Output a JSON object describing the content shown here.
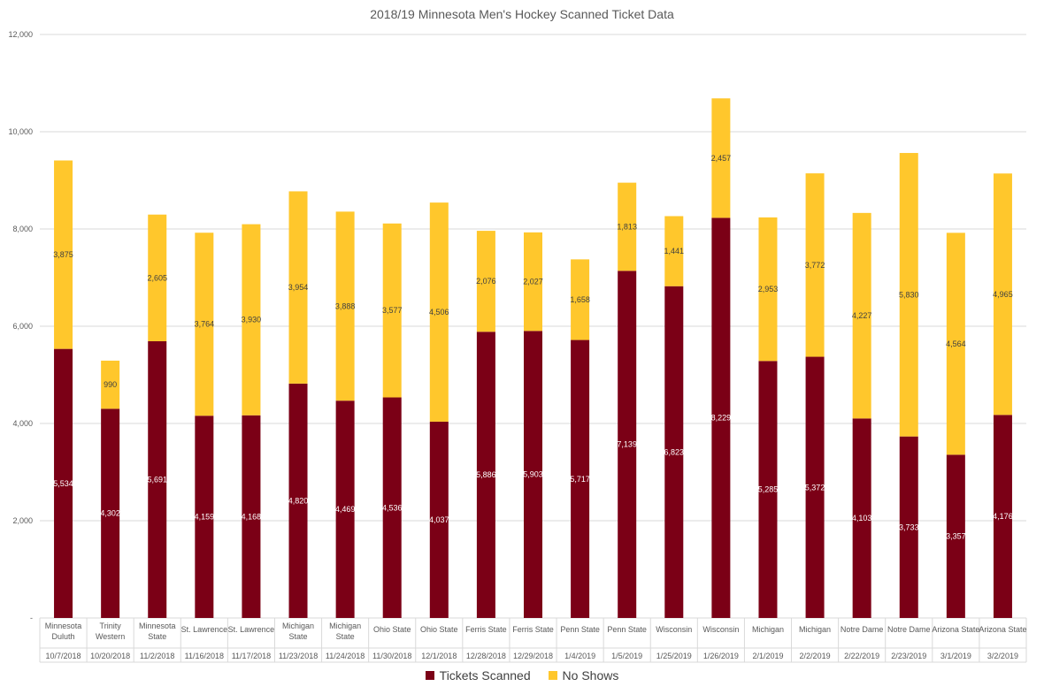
{
  "chart_data": {
    "type": "bar",
    "stacked": true,
    "title": "2018/19 Minnesota Men's Hockey Scanned Ticket Data",
    "ylim": [
      0,
      12000
    ],
    "yticks": [
      "-",
      "2,000",
      "4,000",
      "6,000",
      "8,000",
      "10,000",
      "12,000"
    ],
    "ytick_values": [
      0,
      2000,
      4000,
      6000,
      8000,
      10000,
      12000
    ],
    "grid": true,
    "legend_position": "bottom",
    "categories": [
      {
        "opponent": [
          "Minnesota",
          "Duluth"
        ],
        "date": "10/7/2018"
      },
      {
        "opponent": [
          "Trinity",
          "Western"
        ],
        "date": "10/20/2018"
      },
      {
        "opponent": [
          "Minnesota",
          "State"
        ],
        "date": "11/2/2018"
      },
      {
        "opponent": [
          "St. Lawrence"
        ],
        "date": "11/16/2018"
      },
      {
        "opponent": [
          "St. Lawrence"
        ],
        "date": "11/17/2018"
      },
      {
        "opponent": [
          "Michigan",
          "State"
        ],
        "date": "11/23/2018"
      },
      {
        "opponent": [
          "Michigan",
          "State"
        ],
        "date": "11/24/2018"
      },
      {
        "opponent": [
          "Ohio State"
        ],
        "date": "11/30/2018"
      },
      {
        "opponent": [
          "Ohio State"
        ],
        "date": "12/1/2018"
      },
      {
        "opponent": [
          "Ferris State"
        ],
        "date": "12/28/2018"
      },
      {
        "opponent": [
          "Ferris State"
        ],
        "date": "12/29/2018"
      },
      {
        "opponent": [
          "Penn State"
        ],
        "date": "1/4/2019"
      },
      {
        "opponent": [
          "Penn State"
        ],
        "date": "1/5/2019"
      },
      {
        "opponent": [
          "Wisconsin"
        ],
        "date": "1/25/2019"
      },
      {
        "opponent": [
          "Wisconsin"
        ],
        "date": "1/26/2019"
      },
      {
        "opponent": [
          "Michigan"
        ],
        "date": "2/1/2019"
      },
      {
        "opponent": [
          "Michigan"
        ],
        "date": "2/2/2019"
      },
      {
        "opponent": [
          "Notre Dame"
        ],
        "date": "2/22/2019"
      },
      {
        "opponent": [
          "Notre Dame"
        ],
        "date": "2/23/2019"
      },
      {
        "opponent": [
          "Arizona State"
        ],
        "date": "3/1/2019"
      },
      {
        "opponent": [
          "Arizona State"
        ],
        "date": "3/2/2019"
      }
    ],
    "series": [
      {
        "name": "Tickets Scanned",
        "color": "#7B0016",
        "label_color": "#ffffff",
        "values": [
          5534,
          4302,
          5691,
          4159,
          4168,
          4820,
          4469,
          4536,
          4037,
          5886,
          5903,
          5717,
          7139,
          6823,
          8229,
          5285,
          5372,
          4103,
          3733,
          3357,
          4176
        ],
        "labels": [
          "5,534",
          "4,302",
          "5,691",
          "4,159",
          "4,168",
          "4,820",
          "4,469",
          "4,536",
          "4,037",
          "5,886",
          "5,903",
          "5,717",
          "7,139",
          "6,823",
          "8,229",
          "5,285",
          "5,372",
          "4,103",
          "3,733",
          "3,357",
          "4,176"
        ]
      },
      {
        "name": "No Shows",
        "color": "#FFC72C",
        "label_color": "#404040",
        "values": [
          3875,
          990,
          2605,
          3764,
          3930,
          3954,
          3888,
          3577,
          4506,
          2076,
          2027,
          1658,
          1813,
          1441,
          2457,
          2953,
          3772,
          4227,
          5830,
          4564,
          4965
        ],
        "labels": [
          "3,875",
          "990",
          "2,605",
          "3,764",
          "3,930",
          "3,954",
          "3,888",
          "3,577",
          "4,506",
          "2,076",
          "2,027",
          "1,658",
          "1,813",
          "1,441",
          "2,457",
          "2,953",
          "3,772",
          "4,227",
          "5,830",
          "4,564",
          "4,965"
        ]
      }
    ]
  }
}
